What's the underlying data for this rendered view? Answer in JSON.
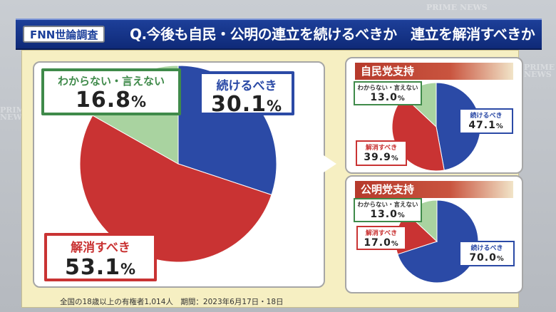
{
  "header": {
    "badge": "FNN世論調査",
    "question": "Q.今後も自民・公明の連立を続けるべきか　連立を解消すべきか"
  },
  "watermark": {
    "text": "PRIME NEWS"
  },
  "footer": {
    "text": "全国の18歳以上の有権者1,014人　期間：2023年6月17日・18日"
  },
  "colors": {
    "blue": "#2b4aa6",
    "red": "#c93333",
    "green": "#a9d3a0",
    "border_blue": "#2b4aa6",
    "border_red": "#c93333",
    "border_green": "#3f8a4a"
  },
  "chart_data": [
    {
      "type": "pie",
      "title": "",
      "series": [
        {
          "label": "続けるべき",
          "value": 30.1,
          "value_text": "30.1",
          "color": "#2b4aa6"
        },
        {
          "label": "解消すべき",
          "value": 53.1,
          "value_text": "53.1",
          "color": "#c93333"
        },
        {
          "label": "わからない・言えない",
          "value": 16.8,
          "value_text": "16.8",
          "color": "#a9d3a0"
        }
      ],
      "unit": "%"
    },
    {
      "type": "pie",
      "title": "自民党支持",
      "series": [
        {
          "label": "続けるべき",
          "value": 47.1,
          "value_text": "47.1",
          "color": "#2b4aa6"
        },
        {
          "label": "解消すべき",
          "value": 39.9,
          "value_text": "39.9",
          "color": "#c93333"
        },
        {
          "label": "わからない・言えない",
          "value": 13.0,
          "value_text": "13.0",
          "color": "#a9d3a0"
        }
      ],
      "unit": "%"
    },
    {
      "type": "pie",
      "title": "公明党支持",
      "series": [
        {
          "label": "続けるべき",
          "value": 70.0,
          "value_text": "70.0",
          "color": "#2b4aa6"
        },
        {
          "label": "解消すべき",
          "value": 17.0,
          "value_text": "17.0",
          "color": "#c93333"
        },
        {
          "label": "わからない・言えない",
          "value": 13.0,
          "value_text": "13.0",
          "color": "#a9d3a0"
        }
      ],
      "unit": "%"
    }
  ]
}
